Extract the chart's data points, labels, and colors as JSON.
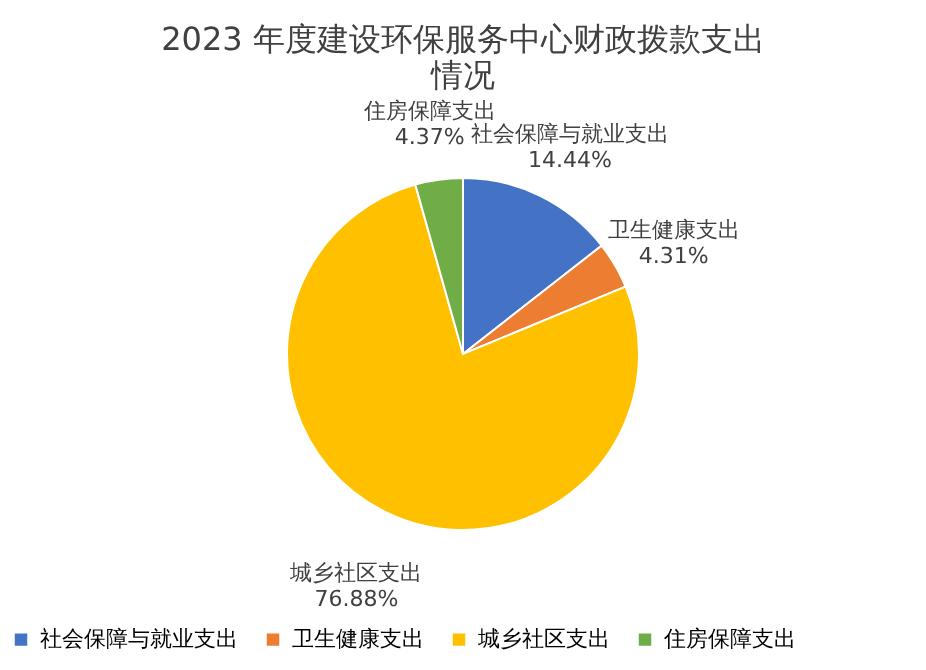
{
  "chart_data": {
    "type": "pie",
    "title": "2023 年度建设环保服务中心财政拨款支出情况",
    "categories": [
      "社会保障与就业支出",
      "卫生健康支出",
      "城乡社区支出",
      "住房保障支出"
    ],
    "values": [
      14.44,
      4.31,
      76.88,
      4.37
    ],
    "colors": [
      "#4472c4",
      "#ed7d31",
      "#ffc000",
      "#70ad47"
    ],
    "value_labels": [
      "14.44%",
      "4.31%",
      "76.88%",
      "4.37%"
    ],
    "legend": "bottom"
  }
}
